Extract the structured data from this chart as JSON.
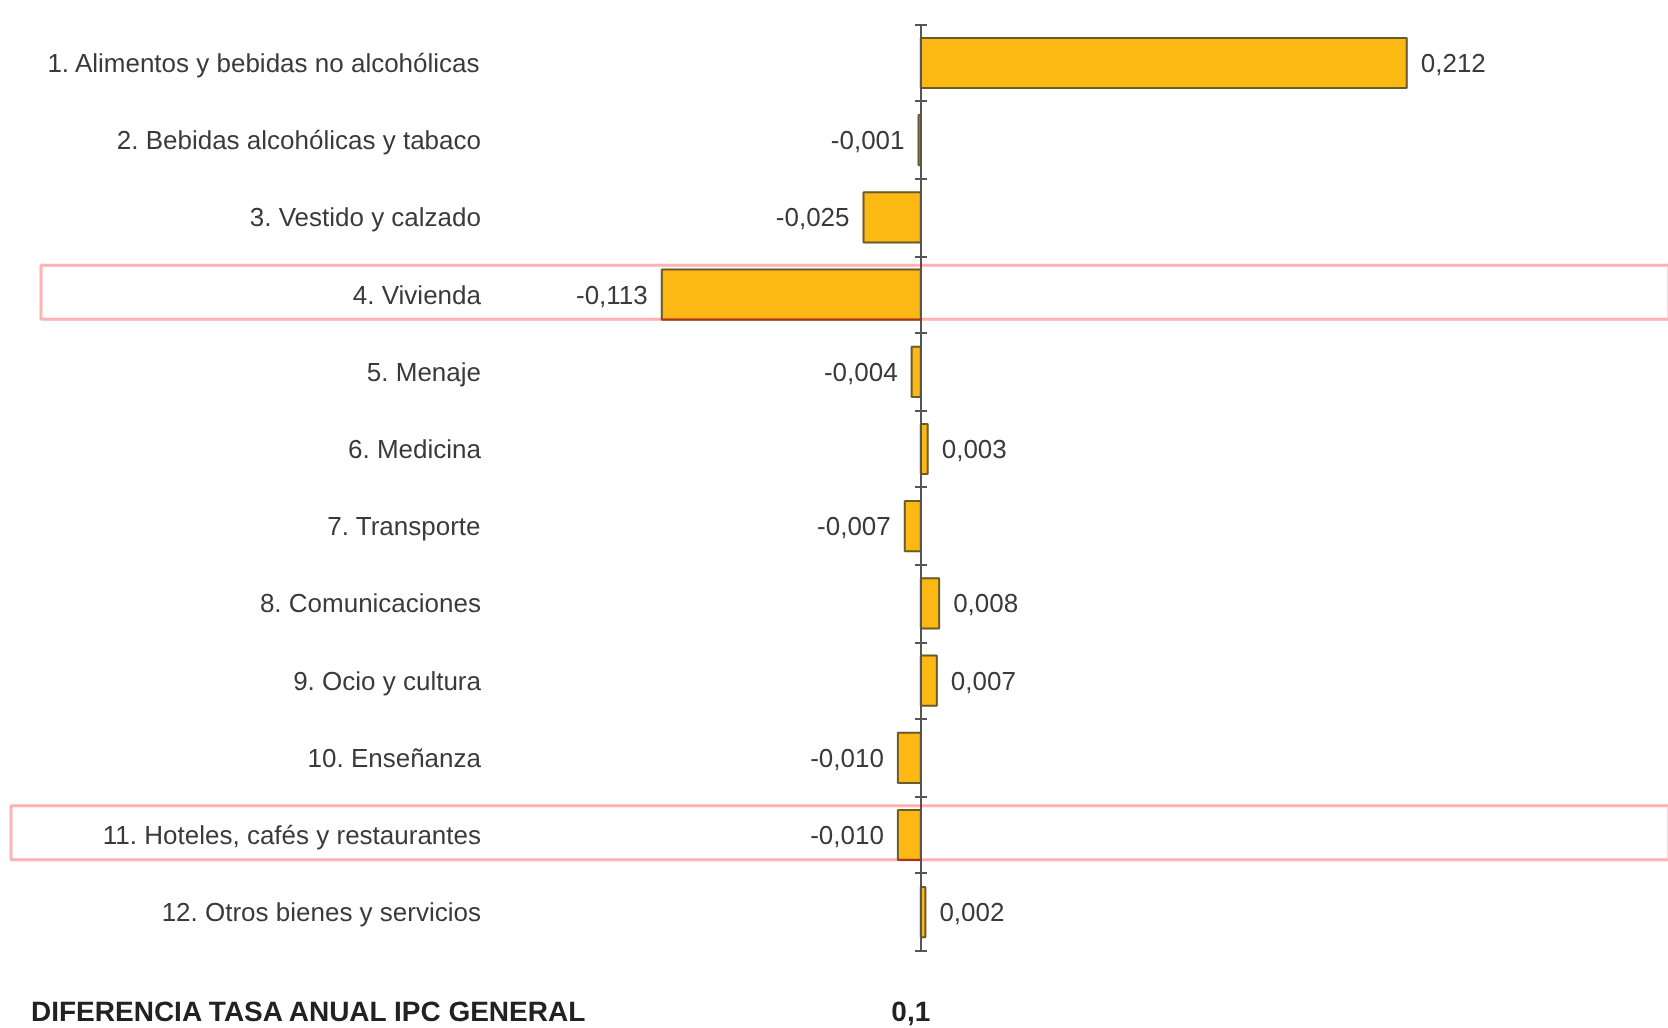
{
  "chart_data": {
    "type": "bar",
    "orientation": "horizontal",
    "tick_labels": "y",
    "categories": [
      "1. Alimentos y bebidas no alcohólicas",
      "2. Bebidas alcohólicas y tabaco",
      "3. Vestido y calzado",
      "4. Vivienda",
      "5. Menaje",
      "6. Medicina",
      "7. Transporte",
      "8. Comunicaciones",
      "9. Ocio y cultura",
      "10. Enseñanza",
      "11. Hoteles, cafés y restaurantes",
      "12. Otros bienes y servicios"
    ],
    "values": [
      0.212,
      -0.001,
      -0.025,
      -0.113,
      -0.004,
      0.003,
      -0.007,
      0.008,
      0.007,
      -0.01,
      -0.01,
      0.002
    ],
    "value_labels": [
      "0,212",
      "-0,001",
      "-0,025",
      "-0,113",
      "-0,004",
      "0,003",
      "-0,007",
      "0,008",
      "0,007",
      "-0,010",
      "-0,010",
      "0,002"
    ],
    "color": "#fdb913",
    "annotations": [
      "DIFERENCIA TASA ANUAL IPC GENERAL",
      "0,1"
    ]
  }
}
